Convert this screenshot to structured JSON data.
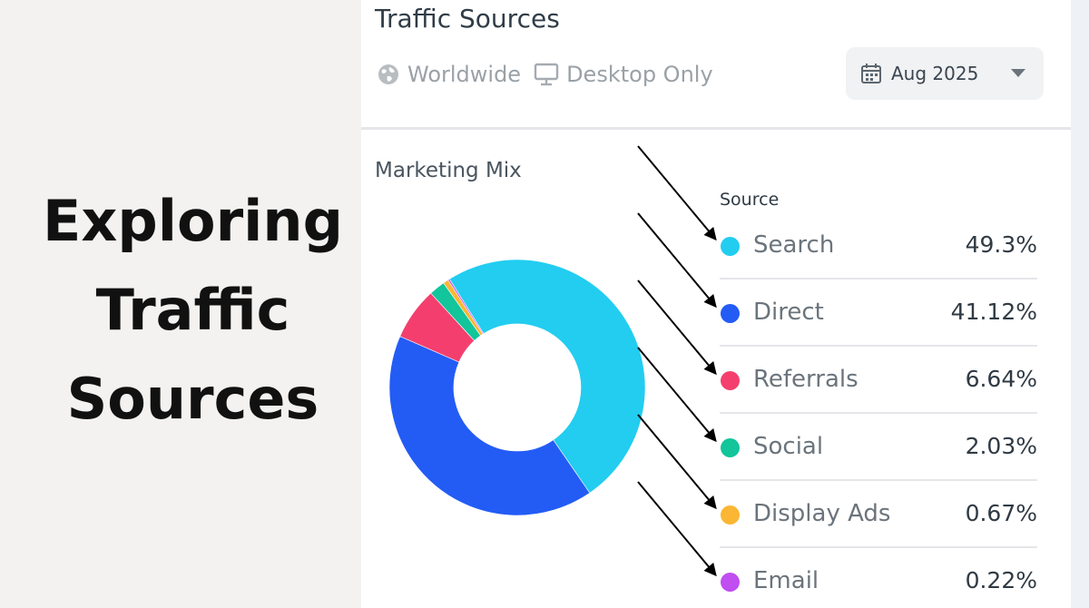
{
  "headline": {
    "line1": "Exploring",
    "line2": "Traffic",
    "line3": "Sources"
  },
  "panel": {
    "title": "Traffic Sources",
    "filters": [
      {
        "label": "Worldwide",
        "icon": "globe-icon"
      },
      {
        "label": "Desktop Only",
        "icon": "monitor-icon"
      }
    ],
    "date_select": {
      "value": "Aug 2025",
      "icon": "calendar-icon"
    },
    "section_title": "Marketing Mix",
    "legend_header": "Source"
  },
  "chart_data": {
    "type": "pie",
    "donut": true,
    "categories": [
      "Search",
      "Direct",
      "Referrals",
      "Social",
      "Display Ads",
      "Email"
    ],
    "values": [
      49.3,
      41.12,
      6.64,
      2.03,
      0.67,
      0.22
    ],
    "labels": [
      "49.3%",
      "41.12%",
      "6.64%",
      "2.03%",
      "0.67%",
      "0.22%"
    ],
    "colors": [
      "#22cdf0",
      "#235cf5",
      "#f43f6e",
      "#12c59b",
      "#fbb633",
      "#c04ef0"
    ],
    "legend_position": "right",
    "annotations": "black arrows point to each legend entry"
  }
}
